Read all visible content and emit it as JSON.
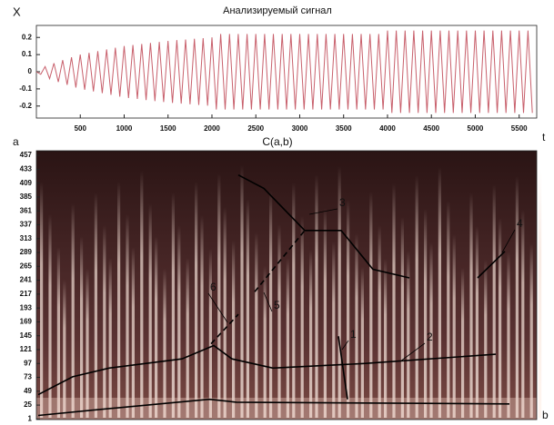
{
  "chart_data": [
    {
      "type": "line",
      "title": "Анализируемый сигнал",
      "y_label": "X",
      "x_label": "t",
      "panel_label": "a",
      "color": "#c8606c",
      "x": [
        0,
        50,
        100,
        150,
        200,
        250,
        300,
        350,
        400,
        450,
        500,
        550,
        600,
        650,
        700,
        750,
        800,
        850,
        900,
        950,
        1000,
        1050,
        1100,
        1150,
        1200,
        1250,
        1300,
        1350,
        1400,
        1450,
        1500,
        1550,
        1600,
        1650,
        1700,
        1750,
        1800,
        1850,
        1900,
        1950,
        2000,
        2050,
        2100,
        2150,
        2200,
        2250,
        2300,
        2350,
        2400,
        2450,
        2500,
        2550,
        2600,
        2650,
        2700,
        2750,
        2800,
        2850,
        2900,
        2950,
        3000,
        3050,
        3100,
        3150,
        3200,
        3250,
        3300,
        3350,
        3400,
        3450,
        3500,
        3550,
        3600,
        3650,
        3700,
        3750,
        3800,
        3850,
        3900,
        3950,
        4000,
        4050,
        4100,
        4150,
        4200,
        4250,
        4300,
        4350,
        4400,
        4450,
        4500,
        4550,
        4600,
        4650,
        4700,
        4750,
        4800,
        4850,
        4900,
        4950,
        5000,
        5050,
        5100,
        5150,
        5200,
        5250,
        5300,
        5350,
        5400,
        5450,
        5500,
        5550,
        5600,
        5650
      ],
      "values": [
        0,
        -0.015,
        0.03,
        -0.04,
        0.05,
        -0.06,
        0.068,
        -0.076,
        0.084,
        -0.092,
        0.1,
        -0.105,
        0.11,
        -0.115,
        0.12,
        -0.125,
        0.13,
        -0.135,
        0.14,
        -0.145,
        0.15,
        -0.153,
        0.156,
        -0.159,
        0.162,
        -0.165,
        0.168,
        -0.171,
        0.174,
        -0.177,
        0.18,
        -0.182,
        0.184,
        -0.186,
        0.188,
        -0.19,
        0.192,
        -0.194,
        0.196,
        -0.198,
        0.2,
        -0.22,
        0.22,
        -0.22,
        0.22,
        -0.22,
        0.22,
        -0.22,
        0.22,
        -0.22,
        0.22,
        -0.22,
        0.22,
        -0.22,
        0.22,
        -0.22,
        0.22,
        -0.22,
        0.22,
        -0.22,
        0.22,
        -0.22,
        0.22,
        -0.22,
        0.22,
        -0.22,
        0.22,
        -0.22,
        0.22,
        -0.22,
        0.22,
        -0.22,
        0.22,
        -0.22,
        0.22,
        -0.22,
        0.22,
        -0.22,
        0.22,
        -0.22,
        0.24,
        -0.24,
        0.24,
        -0.24,
        0.24,
        -0.24,
        0.24,
        -0.24,
        0.24,
        -0.24,
        0.24,
        -0.24,
        0.24,
        -0.24,
        0.24,
        -0.24,
        0.24,
        -0.24,
        0.24,
        -0.24,
        0.24,
        -0.24,
        0.24,
        -0.24,
        0.24,
        -0.24,
        0.24,
        -0.24,
        0.24,
        -0.24,
        0.24,
        -0.24,
        0.24,
        -0.24
      ],
      "xlim": [
        0,
        5700
      ],
      "xticks": [
        500,
        1000,
        1500,
        2000,
        2500,
        3000,
        3500,
        4000,
        4500,
        5000,
        5500
      ],
      "ylim": [
        -0.27,
        0.27
      ],
      "yticks": [
        0.2,
        0.1,
        0,
        -0.1,
        -0.2
      ]
    },
    {
      "type": "line",
      "title": "C(a,b)",
      "x_label": "b",
      "xlim": [
        0,
        5700
      ],
      "ylim": [
        0,
        465
      ],
      "yticks": [
        1,
        25,
        49,
        73,
        97,
        121,
        145,
        169,
        193,
        217,
        241,
        265,
        289,
        313,
        337,
        361,
        385,
        409,
        433,
        457
      ],
      "series": [
        {
          "color": "#000000",
          "x": [
            21,
            414,
            829,
            1658,
            2021,
            2228,
            2694,
            3731,
            5234
          ],
          "values": [
            43,
            74,
            89,
            105,
            128,
            105,
            89,
            97,
            113
          ]
        },
        {
          "color": "#000000",
          "x": [
            21,
            622,
            1969,
            2280,
            5389
          ],
          "values": [
            7,
            16,
            35,
            30,
            27
          ]
        },
        {
          "color": "#000000",
          "x": [
            2301,
            2591,
            3057,
            3472,
            3834,
            4249
          ],
          "values": [
            423,
            400,
            327,
            327,
            260,
            245
          ]
        },
        {
          "color": "#000000",
          "x": [
            5026,
            5337
          ],
          "values": [
            245,
            291
          ]
        },
        {
          "color": "#000000",
          "dashed": true,
          "x": [
            2487,
            3057
          ],
          "values": [
            221,
            327
          ]
        },
        {
          "color": "#000000",
          "dashed": true,
          "x": [
            1990,
            2301
          ],
          "values": [
            131,
            182
          ]
        },
        {
          "color": "#000000",
          "x": [
            3441,
            3544
          ],
          "values": [
            144,
            35
          ]
        }
      ],
      "annotations": [
        "1",
        "2",
        "3",
        "4",
        "5",
        "6"
      ]
    }
  ]
}
